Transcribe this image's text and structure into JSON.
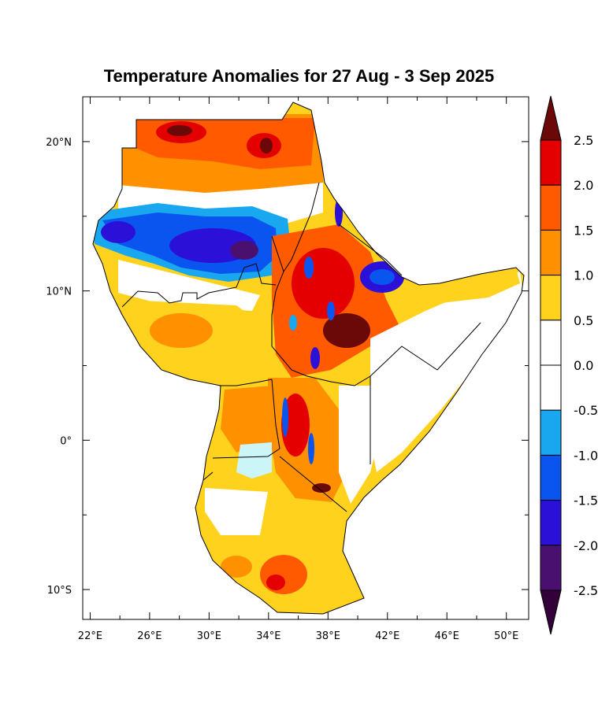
{
  "map": {
    "title": "Temperature Anomalies for 27 Aug - 3 Sep 2025",
    "lon_range": [
      21.5,
      51.5
    ],
    "lat_range": [
      -12,
      23
    ],
    "lon_ticks": [
      {
        "value": 22,
        "label": "22°E"
      },
      {
        "value": 26,
        "label": "26°E"
      },
      {
        "value": 30,
        "label": "30°E"
      },
      {
        "value": 34,
        "label": "34°E"
      },
      {
        "value": 38,
        "label": "38°E"
      },
      {
        "value": 42,
        "label": "42°E"
      },
      {
        "value": 46,
        "label": "46°E"
      },
      {
        "value": 50,
        "label": "50°E"
      }
    ],
    "lon_minor_ticks": [
      24,
      28,
      32,
      36,
      40,
      44,
      48
    ],
    "lat_ticks": [
      {
        "value": 20,
        "label": "20°N"
      },
      {
        "value": 10,
        "label": "10°N"
      },
      {
        "value": 0,
        "label": "0°"
      },
      {
        "value": -10,
        "label": "10°S"
      }
    ],
    "lat_minor_ticks": [
      15,
      5,
      -5
    ]
  },
  "colorbar": {
    "labels": [
      "2.5",
      "2.0",
      "1.5",
      "1.0",
      "0.5",
      "0.0",
      "-0.5",
      "-1.0",
      "-1.5",
      "-2.0",
      "-2.5"
    ],
    "colors": [
      "#6b0808",
      "#e50000",
      "#ff5a00",
      "#ff9000",
      "#ffd21e",
      "#ffffff",
      "#ffffff",
      "#19a7f0",
      "#0a55f0",
      "#2b10d8",
      "#4a1070",
      "#33003a"
    ]
  }
}
